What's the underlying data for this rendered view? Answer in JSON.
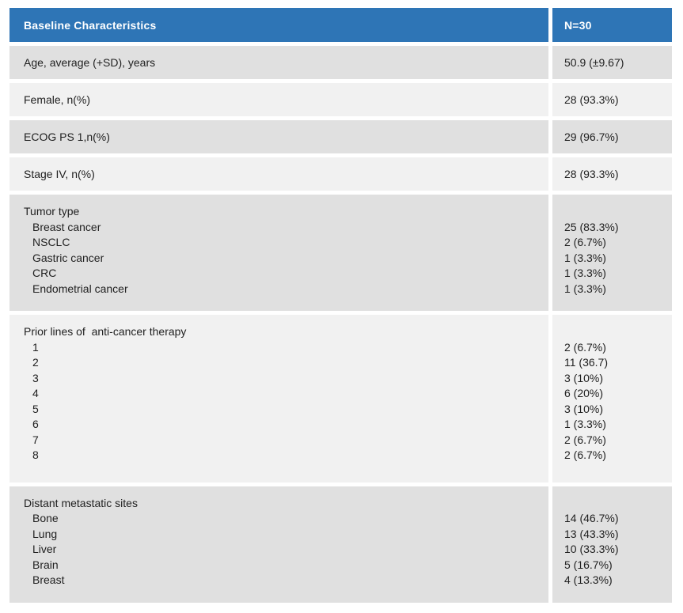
{
  "colors": {
    "header_bg": "#2e75b6",
    "header_text": "#ffffff",
    "row_shade_dark": "#e0e0e0",
    "row_shade_light": "#f1f1f1",
    "body_text": "#212121"
  },
  "table": {
    "header": {
      "label": "Baseline Characteristics",
      "value": "N=30"
    },
    "rows": [
      {
        "type": "single",
        "shade": "dark",
        "label": "Age, average (+SD), years",
        "value": "50.9  (±9.67)"
      },
      {
        "type": "single",
        "shade": "light",
        "label": "Female, n(%)",
        "value": "28  (93.3%)"
      },
      {
        "type": "single",
        "shade": "dark",
        "label": "ECOG PS 1,n(%)",
        "value": "29  (96.7%)"
      },
      {
        "type": "single",
        "shade": "light",
        "label": "Stage IV, n(%)",
        "value": "28  (93.3%)"
      },
      {
        "type": "group",
        "shade": "dark",
        "label": "Tumor type",
        "items": [
          {
            "label": "Breast cancer",
            "value": "25 (83.3%)"
          },
          {
            "label": "NSCLC",
            "value": "2 (6.7%)"
          },
          {
            "label": "Gastric cancer",
            "value": "1 (3.3%)"
          },
          {
            "label": "CRC",
            "value": "1 (3.3%)"
          },
          {
            "label": "Endometrial cancer",
            "value": "1 (3.3%)"
          }
        ]
      },
      {
        "type": "group",
        "shade": "light",
        "label": "Prior lines of  anti-cancer therapy",
        "extra_bottom_space": true,
        "items": [
          {
            "label": "1",
            "value": "2 (6.7%)"
          },
          {
            "label": "2",
            "value": "11 (36.7)"
          },
          {
            "label": "3",
            "value": "3 (10%)"
          },
          {
            "label": "4",
            "value": "6 (20%)"
          },
          {
            "label": "5",
            "value": "3 (10%)"
          },
          {
            "label": "6",
            "value": "1 (3.3%)"
          },
          {
            "label": "7",
            "value": "2 (6.7%)"
          },
          {
            "label": "8",
            "value": "2 (6.7%)"
          }
        ]
      },
      {
        "type": "group",
        "shade": "dark",
        "label": "Distant metastatic sites",
        "items": [
          {
            "label": "Bone",
            "value": "14 (46.7%)"
          },
          {
            "label": "Lung",
            "value": "13 (43.3%)"
          },
          {
            "label": "Liver",
            "value": "10 (33.3%)"
          },
          {
            "label": "Brain",
            "value": "5 (16.7%)"
          },
          {
            "label": "Breast",
            "value": "4 (13.3%)"
          }
        ]
      }
    ]
  }
}
